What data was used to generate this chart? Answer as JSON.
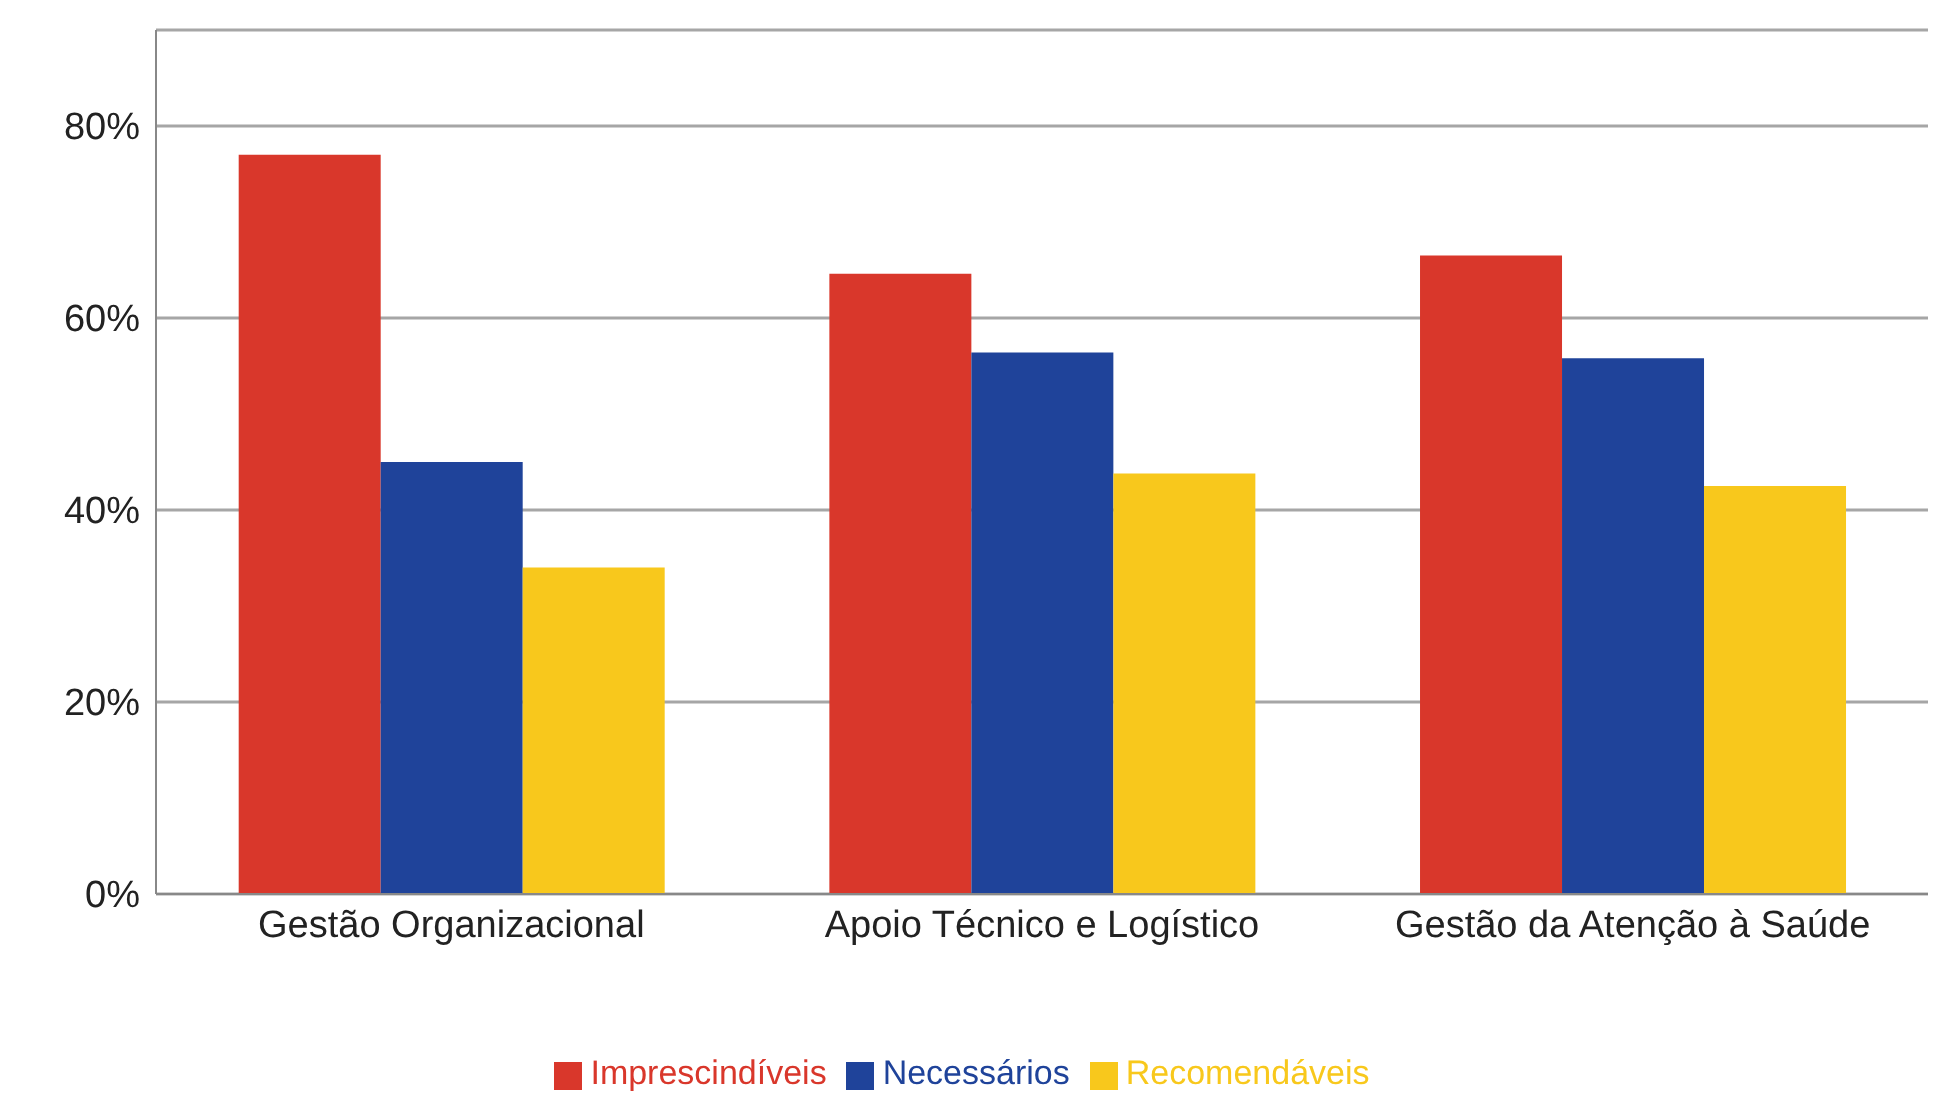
{
  "chart_data": {
    "type": "bar",
    "categories": [
      "Gestão Organizacional",
      "Apoio Técnico e Logístico",
      "Gestão da Atenção à Saúde"
    ],
    "series": [
      {
        "name": "Imprescindíveis",
        "color": "#d9372b",
        "values": [
          77,
          64.6,
          66.5
        ]
      },
      {
        "name": "Necessários",
        "color": "#1f439a",
        "values": [
          45,
          56.4,
          55.8
        ]
      },
      {
        "name": "Recomendáveis",
        "color": "#f8c81c",
        "values": [
          34,
          43.8,
          42.5
        ]
      }
    ],
    "ylim": [
      0,
      90
    ],
    "yticks": [
      {
        "value": 0,
        "label": "0%"
      },
      {
        "value": 20,
        "label": "20%"
      },
      {
        "value": 40,
        "label": "40%"
      },
      {
        "value": 60,
        "label": "60%"
      },
      {
        "value": 80,
        "label": "80%"
      }
    ],
    "grid": "y",
    "legend": "bottom"
  }
}
